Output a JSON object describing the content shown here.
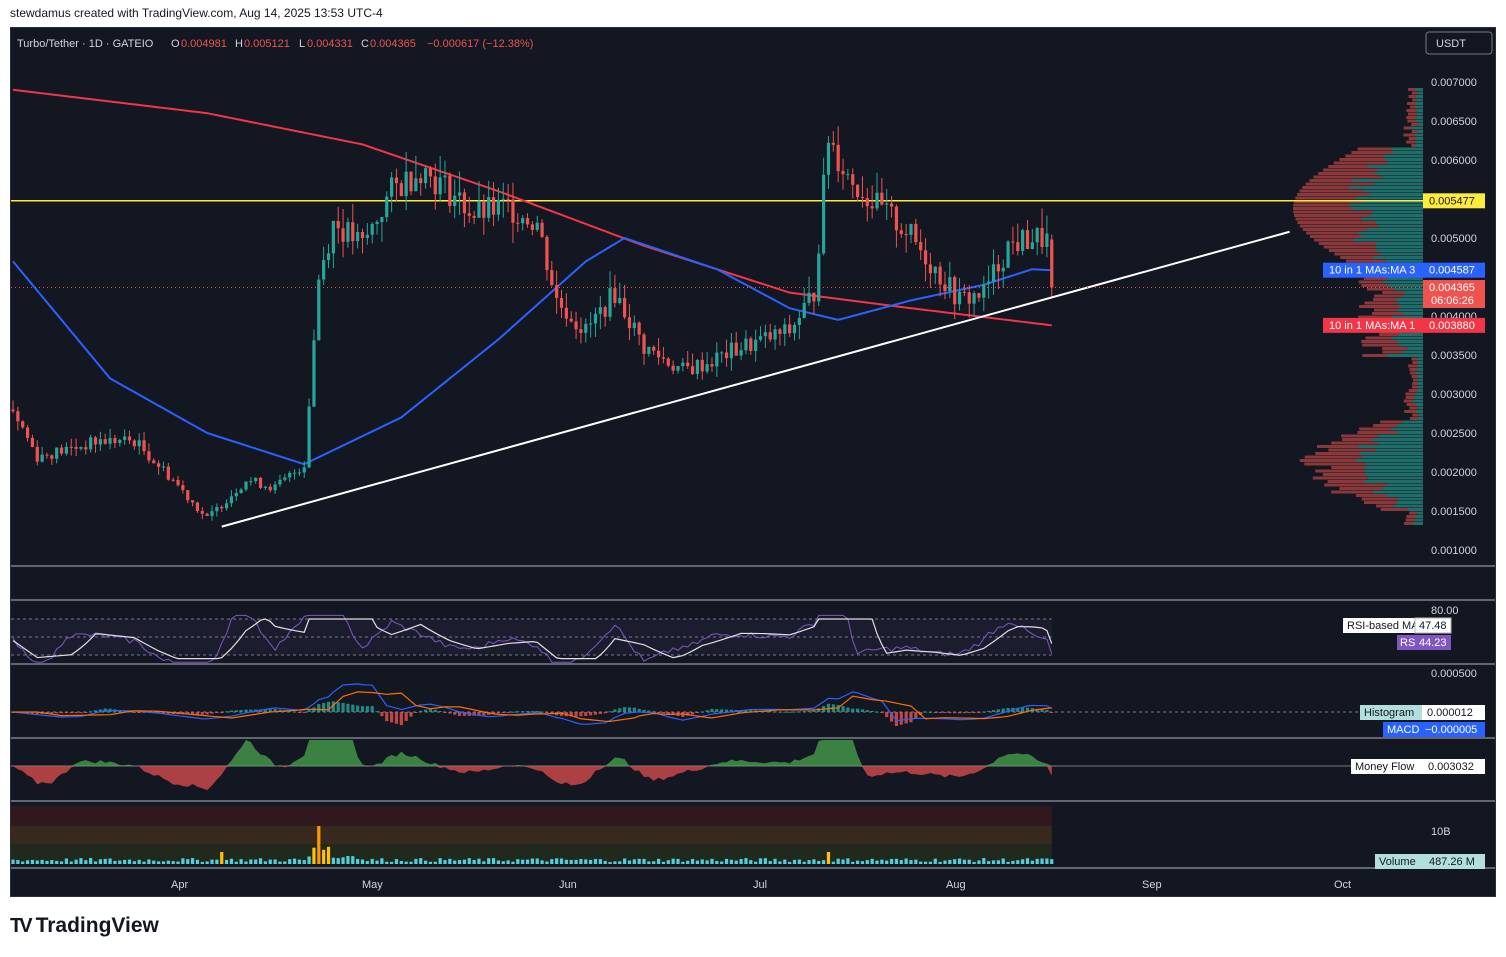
{
  "header": {
    "created_note": "stewdamus created with TradingView.com, Aug 14, 2025 13:53 UTC-4",
    "symbol": "Turbo/Tether · 1D · GATEIO",
    "ohlc": {
      "o_label": "O",
      "o": "0.004981",
      "h_label": "H",
      "h": "0.005121",
      "l_label": "L",
      "l": "0.004331",
      "c_label": "C",
      "c": "0.004365",
      "change": "−0.000617 (−12.38%)"
    },
    "currency": "USDT"
  },
  "colors": {
    "bg": "#131722",
    "up": "#26a69a",
    "down": "#ef5350",
    "ma_blue": "#2962ff",
    "ma_red": "#f23645",
    "yellow": "#ffeb3b",
    "trend": "#ffffff"
  },
  "price_axis": {
    "labels": [
      "0.007000",
      "0.006500",
      "0.006000",
      "0.005000",
      "0.004000",
      "0.003500",
      "0.003000",
      "0.002500",
      "0.002000",
      "0.001500",
      "0.001000"
    ],
    "levels": [
      0.007,
      0.0065,
      0.006,
      0.005,
      0.004,
      0.0035,
      0.003,
      0.0025,
      0.002,
      0.0015,
      0.001
    ]
  },
  "price_tags": {
    "yellow_level": {
      "value": 0.005477,
      "text": "0.005477"
    },
    "ma3": {
      "value": 0.004587,
      "text": "0.004587",
      "label": "10 in 1 MAs:MA 3"
    },
    "last": {
      "value": 0.004365,
      "text": "0.004365",
      "countdown": "06:06:26"
    },
    "ma1": {
      "value": 0.00388,
      "text": "0.003880",
      "label": "10 in 1 MAs:MA 1"
    }
  },
  "time_axis": {
    "labels": [
      "Apr",
      "May",
      "Jun",
      "Jul",
      "Aug",
      "Sep",
      "Oct"
    ]
  },
  "rsi": {
    "level_label": "80.00",
    "ma_label": "RSI-based MA",
    "ma_value": "47.48",
    "rsi_label": "RSI",
    "rsi_value": "44.23"
  },
  "macd": {
    "level_label": "0.000500",
    "hist_label": "Histogram",
    "hist_value": "0.000012",
    "macd_label": "MACD",
    "macd_value": "−0.000005"
  },
  "money_flow": {
    "label": "Money Flow",
    "value": "0.003032"
  },
  "volume": {
    "level_label": "10B",
    "label": "Volume",
    "value": "487.26 M"
  },
  "brand": {
    "name": "TradingView"
  },
  "chart_data": {
    "type": "candlestick",
    "symbol": "Turbo/Tether",
    "interval": "1D",
    "x": "daily candles, Mar 2025 – Aug 14 2025",
    "ylim": [
      0.001,
      0.007
    ],
    "waypoints": [
      {
        "d": 0,
        "p": 0.0028
      },
      {
        "d": 5,
        "p": 0.0022
      },
      {
        "d": 12,
        "p": 0.0023
      },
      {
        "d": 18,
        "p": 0.0024
      },
      {
        "d": 25,
        "p": 0.0024
      },
      {
        "d": 33,
        "p": 0.0019
      },
      {
        "d": 40,
        "p": 0.0014
      },
      {
        "d": 48,
        "p": 0.0019
      },
      {
        "d": 54,
        "p": 0.0018
      },
      {
        "d": 60,
        "p": 0.0021
      },
      {
        "d": 63,
        "p": 0.0045
      },
      {
        "d": 66,
        "p": 0.0052
      },
      {
        "d": 72,
        "p": 0.0049
      },
      {
        "d": 78,
        "p": 0.0056
      },
      {
        "d": 84,
        "p": 0.0059
      },
      {
        "d": 90,
        "p": 0.0056
      },
      {
        "d": 95,
        "p": 0.0053
      },
      {
        "d": 102,
        "p": 0.0054
      },
      {
        "d": 108,
        "p": 0.0052
      },
      {
        "d": 112,
        "p": 0.0042
      },
      {
        "d": 118,
        "p": 0.0038
      },
      {
        "d": 124,
        "p": 0.0043
      },
      {
        "d": 130,
        "p": 0.0036
      },
      {
        "d": 138,
        "p": 0.0033
      },
      {
        "d": 143,
        "p": 0.0034
      },
      {
        "d": 150,
        "p": 0.0036
      },
      {
        "d": 160,
        "p": 0.0038
      },
      {
        "d": 165,
        "p": 0.0043
      },
      {
        "d": 168,
        "p": 0.0063
      },
      {
        "d": 172,
        "p": 0.0058
      },
      {
        "d": 178,
        "p": 0.0054
      },
      {
        "d": 184,
        "p": 0.0051
      },
      {
        "d": 190,
        "p": 0.0046
      },
      {
        "d": 195,
        "p": 0.0042
      },
      {
        "d": 200,
        "p": 0.0043
      },
      {
        "d": 205,
        "p": 0.0049
      },
      {
        "d": 210,
        "p": 0.005
      },
      {
        "d": 213,
        "p": 0.00498
      },
      {
        "d": 214,
        "p": 0.004365
      }
    ],
    "ma_red_waypoints": [
      {
        "d": 0,
        "p": 0.0069
      },
      {
        "d": 40,
        "p": 0.0066
      },
      {
        "d": 72,
        "p": 0.0062
      },
      {
        "d": 100,
        "p": 0.0056
      },
      {
        "d": 130,
        "p": 0.0049
      },
      {
        "d": 160,
        "p": 0.0043
      },
      {
        "d": 185,
        "p": 0.0041
      },
      {
        "d": 214,
        "p": 0.00388
      }
    ],
    "ma_blue_waypoints": [
      {
        "d": 0,
        "p": 0.0047
      },
      {
        "d": 20,
        "p": 0.0032
      },
      {
        "d": 40,
        "p": 0.0025
      },
      {
        "d": 60,
        "p": 0.0021
      },
      {
        "d": 80,
        "p": 0.0027
      },
      {
        "d": 100,
        "p": 0.0037
      },
      {
        "d": 118,
        "p": 0.0047
      },
      {
        "d": 126,
        "p": 0.005
      },
      {
        "d": 145,
        "p": 0.0046
      },
      {
        "d": 160,
        "p": 0.0041
      },
      {
        "d": 170,
        "p": 0.00395
      },
      {
        "d": 185,
        "p": 0.0042
      },
      {
        "d": 200,
        "p": 0.0044
      },
      {
        "d": 210,
        "p": 0.0046
      },
      {
        "d": 214,
        "p": 0.004587
      }
    ],
    "horizontal_line": 0.005477,
    "trendline": [
      {
        "d": 43,
        "p": 0.0013
      },
      {
        "d": 263,
        "p": 0.00508
      }
    ]
  }
}
